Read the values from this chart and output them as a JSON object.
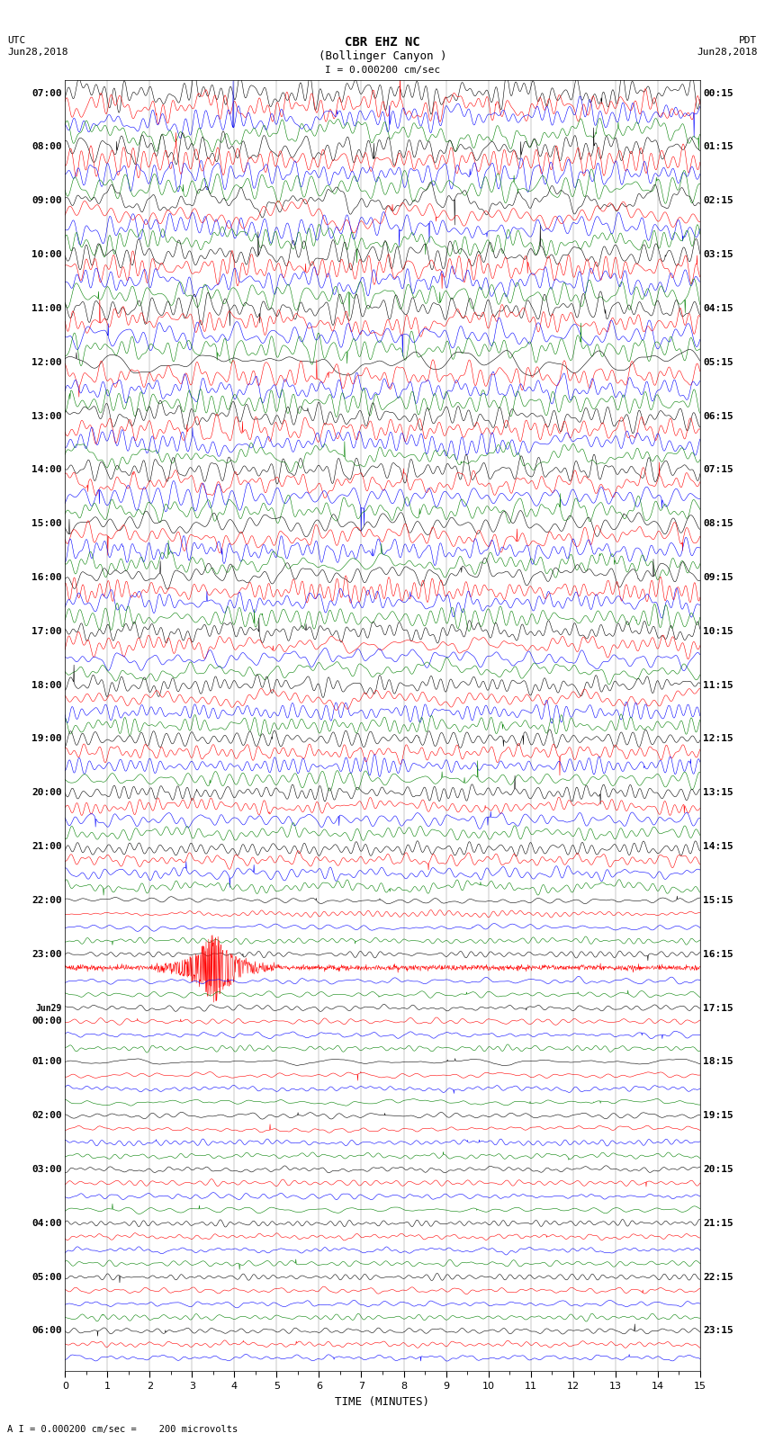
{
  "title_line1": "CBR EHZ NC",
  "title_line2": "(Bollinger Canyon )",
  "scale_label": "I = 0.000200 cm/sec",
  "bottom_label": "A I = 0.000200 cm/sec =    200 microvolts",
  "utc_label": "UTC",
  "pdt_label": "PDT",
  "date_left": "Jun28,2018",
  "date_right": "Jun28,2018",
  "xlabel": "TIME (MINUTES)",
  "xlim": [
    0,
    15
  ],
  "xticks": [
    0,
    1,
    2,
    3,
    4,
    5,
    6,
    7,
    8,
    9,
    10,
    11,
    12,
    13,
    14,
    15
  ],
  "background_color": "#ffffff",
  "colors_cycle": [
    "black",
    "red",
    "blue",
    "green"
  ],
  "left_times_utc": [
    "07:00",
    "",
    "",
    "",
    "08:00",
    "",
    "",
    "",
    "09:00",
    "",
    "",
    "",
    "10:00",
    "",
    "",
    "",
    "11:00",
    "",
    "",
    "",
    "12:00",
    "",
    "",
    "",
    "13:00",
    "",
    "",
    "",
    "14:00",
    "",
    "",
    "",
    "15:00",
    "",
    "",
    "",
    "16:00",
    "",
    "",
    "",
    "17:00",
    "",
    "",
    "",
    "18:00",
    "",
    "",
    "",
    "19:00",
    "",
    "",
    "",
    "20:00",
    "",
    "",
    "",
    "21:00",
    "",
    "",
    "",
    "22:00",
    "",
    "",
    "",
    "23:00",
    "",
    "",
    "",
    "Jun29",
    "00:00",
    "",
    "",
    "01:00",
    "",
    "",
    "",
    "02:00",
    "",
    "",
    "",
    "03:00",
    "",
    "",
    "",
    "04:00",
    "",
    "",
    "",
    "05:00",
    "",
    "",
    "",
    "06:00",
    "",
    ""
  ],
  "right_times_pdt": [
    "00:15",
    "",
    "",
    "",
    "01:15",
    "",
    "",
    "",
    "02:15",
    "",
    "",
    "",
    "03:15",
    "",
    "",
    "",
    "04:15",
    "",
    "",
    "",
    "05:15",
    "",
    "",
    "",
    "06:15",
    "",
    "",
    "",
    "07:15",
    "",
    "",
    "",
    "08:15",
    "",
    "",
    "",
    "09:15",
    "",
    "",
    "",
    "10:15",
    "",
    "",
    "",
    "11:15",
    "",
    "",
    "",
    "12:15",
    "",
    "",
    "",
    "13:15",
    "",
    "",
    "",
    "14:15",
    "",
    "",
    "",
    "15:15",
    "",
    "",
    "",
    "16:15",
    "",
    "",
    "",
    "17:15",
    "",
    "",
    "",
    "18:15",
    "",
    "",
    "",
    "19:15",
    "",
    "",
    "",
    "20:15",
    "",
    "",
    "",
    "21:15",
    "",
    "",
    "",
    "22:15",
    "",
    "",
    "",
    "23:15",
    "",
    ""
  ],
  "n_traces": 95,
  "noise_amplitude": 0.35,
  "special_trace": 65,
  "special_amplitude": 3.0,
  "seed": 42
}
